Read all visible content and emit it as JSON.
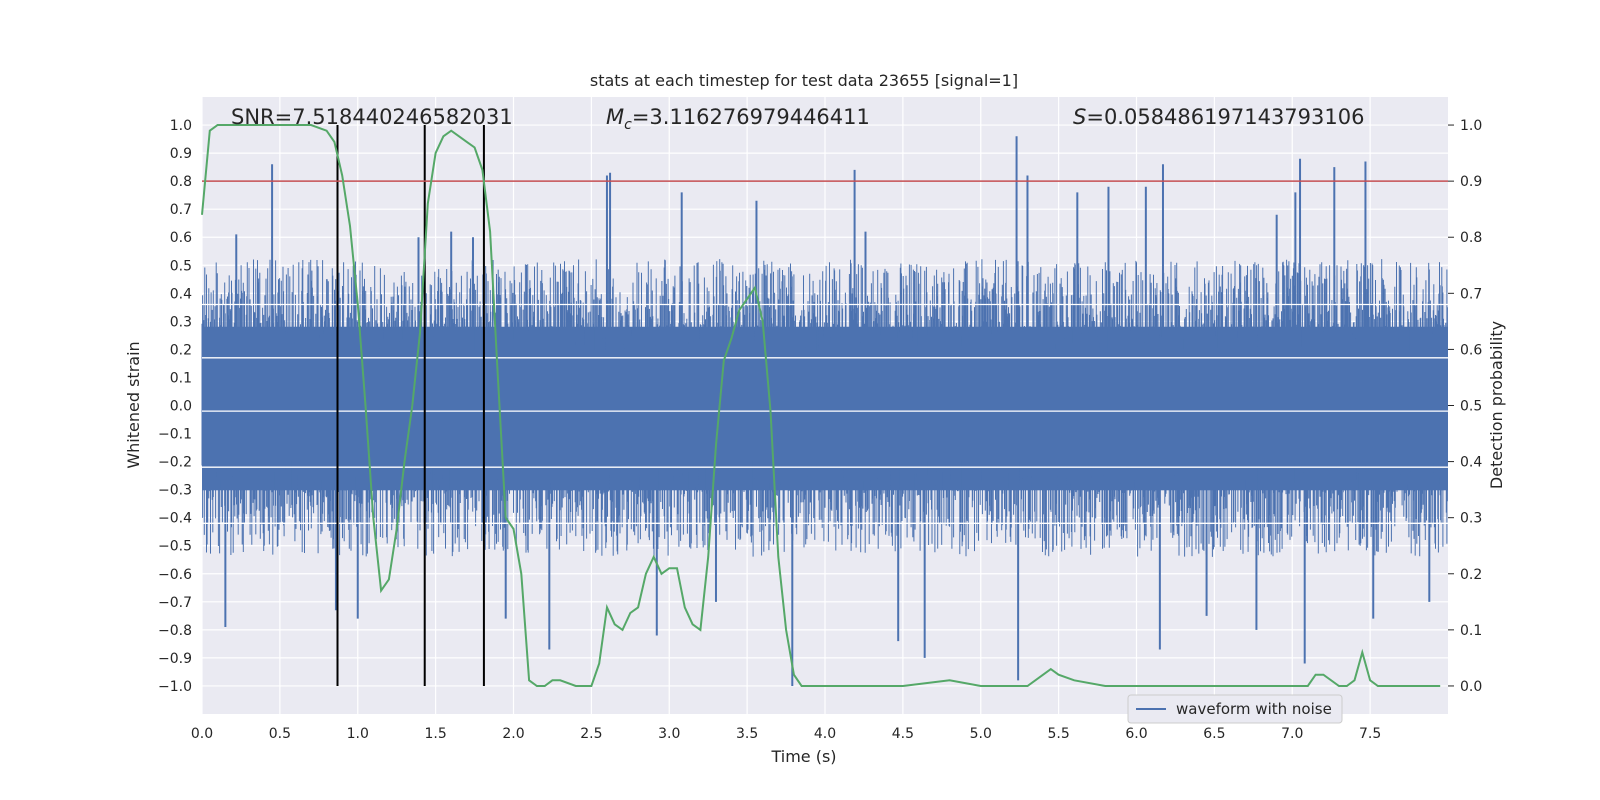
{
  "chart_data": {
    "type": "line",
    "title": "stats at each timestep for test data 23655 [signal=1]",
    "xlabel": "Time (s)",
    "ylabel": "Whitened strain",
    "y2label": "Detection probability",
    "xlim": [
      0.0,
      8.0
    ],
    "ylim": [
      -1.1,
      1.1
    ],
    "y2lim": [
      -0.05,
      1.05
    ],
    "xticks": [
      "0.0",
      "0.5",
      "1.0",
      "1.5",
      "2.0",
      "2.5",
      "3.0",
      "3.5",
      "4.0",
      "4.5",
      "5.0",
      "5.5",
      "6.0",
      "6.5",
      "7.0",
      "7.5"
    ],
    "yticks": [
      "1.0",
      "0.9",
      "0.8",
      "0.7",
      "0.6",
      "0.5",
      "0.4",
      "0.3",
      "0.2",
      "0.1",
      "0.0",
      "−0.1",
      "−0.2",
      "−0.3",
      "−0.4",
      "−0.5",
      "−0.6",
      "−0.7",
      "−0.8",
      "−0.9",
      "−1.0"
    ],
    "y2ticks": [
      "1.0",
      "0.9",
      "0.8",
      "0.7",
      "0.6",
      "0.5",
      "0.4",
      "0.3",
      "0.2",
      "0.1",
      "0.0"
    ],
    "annotations": {
      "snr": "SNR=7.518440246582031",
      "mc_symbol": "M",
      "mc_sub": "c",
      "mc_value": "=3.116276979446411",
      "s_symbol": "S",
      "s_value": "=0.058486197143793106"
    },
    "threshold": {
      "value": 0.9,
      "color": "#c44e52"
    },
    "vertical_lines": [
      0.87,
      1.43,
      1.81
    ],
    "series": [
      {
        "name": "waveform with noise",
        "color": "#4c72b0",
        "core_amplitude": 0.36,
        "spikes": [
          {
            "x": 0.45,
            "y": 0.86
          },
          {
            "x": 0.15,
            "y": -0.79
          },
          {
            "x": 0.22,
            "y": 0.61
          },
          {
            "x": 0.86,
            "y": -0.73
          },
          {
            "x": 1.0,
            "y": -0.76
          },
          {
            "x": 1.39,
            "y": 0.6
          },
          {
            "x": 1.6,
            "y": 0.62
          },
          {
            "x": 1.74,
            "y": 0.6
          },
          {
            "x": 1.95,
            "y": -0.76
          },
          {
            "x": 2.23,
            "y": -0.87
          },
          {
            "x": 2.62,
            "y": 0.83
          },
          {
            "x": 2.6,
            "y": 0.82
          },
          {
            "x": 2.92,
            "y": -0.82
          },
          {
            "x": 3.08,
            "y": 0.76
          },
          {
            "x": 3.56,
            "y": 0.73
          },
          {
            "x": 3.79,
            "y": -1.0
          },
          {
            "x": 4.19,
            "y": 0.84
          },
          {
            "x": 4.47,
            "y": -0.84
          },
          {
            "x": 4.64,
            "y": -0.9
          },
          {
            "x": 5.23,
            "y": 0.96
          },
          {
            "x": 5.24,
            "y": -0.98
          },
          {
            "x": 5.3,
            "y": 0.82
          },
          {
            "x": 5.62,
            "y": 0.76
          },
          {
            "x": 5.82,
            "y": 0.78
          },
          {
            "x": 6.06,
            "y": 0.78
          },
          {
            "x": 6.15,
            "y": -0.87
          },
          {
            "x": 6.17,
            "y": 0.86
          },
          {
            "x": 6.45,
            "y": -0.75
          },
          {
            "x": 6.77,
            "y": -0.8
          },
          {
            "x": 7.02,
            "y": 0.76
          },
          {
            "x": 7.05,
            "y": 0.88
          },
          {
            "x": 7.08,
            "y": -0.92
          },
          {
            "x": 7.27,
            "y": 0.85
          },
          {
            "x": 7.47,
            "y": 0.87
          },
          {
            "x": 7.52,
            "y": -0.76
          },
          {
            "x": 7.88,
            "y": -0.7
          },
          {
            "x": 4.26,
            "y": 0.62
          },
          {
            "x": 3.3,
            "y": -0.7
          },
          {
            "x": 6.9,
            "y": 0.68
          }
        ]
      },
      {
        "name": "detection probability",
        "axis": "right",
        "color": "#55a868",
        "x": [
          0.0,
          0.05,
          0.1,
          0.2,
          0.3,
          0.4,
          0.5,
          0.6,
          0.7,
          0.8,
          0.85,
          0.9,
          0.95,
          1.0,
          1.05,
          1.1,
          1.15,
          1.2,
          1.25,
          1.3,
          1.35,
          1.4,
          1.45,
          1.5,
          1.55,
          1.6,
          1.65,
          1.7,
          1.75,
          1.8,
          1.85,
          1.9,
          1.95,
          2.0,
          2.05,
          2.1,
          2.15,
          2.2,
          2.25,
          2.3,
          2.4,
          2.5,
          2.55,
          2.6,
          2.65,
          2.7,
          2.75,
          2.8,
          2.85,
          2.9,
          2.95,
          3.0,
          3.05,
          3.1,
          3.15,
          3.2,
          3.25,
          3.3,
          3.35,
          3.4,
          3.45,
          3.5,
          3.55,
          3.6,
          3.65,
          3.7,
          3.75,
          3.8,
          3.85,
          3.9,
          4.0,
          4.2,
          4.5,
          4.8,
          5.0,
          5.2,
          5.3,
          5.4,
          5.45,
          5.5,
          5.6,
          5.8,
          6.0,
          6.2,
          6.5,
          6.8,
          7.0,
          7.1,
          7.15,
          7.2,
          7.3,
          7.35,
          7.4,
          7.45,
          7.5,
          7.55,
          7.6,
          7.8,
          7.95
        ],
        "y": [
          0.84,
          0.99,
          1.0,
          1.0,
          1.0,
          1.0,
          1.0,
          1.0,
          1.0,
          0.99,
          0.97,
          0.91,
          0.82,
          0.68,
          0.5,
          0.3,
          0.17,
          0.19,
          0.28,
          0.4,
          0.5,
          0.63,
          0.86,
          0.95,
          0.98,
          0.99,
          0.98,
          0.97,
          0.96,
          0.92,
          0.81,
          0.55,
          0.3,
          0.28,
          0.2,
          0.01,
          0.0,
          0.0,
          0.01,
          0.01,
          0.0,
          0.0,
          0.04,
          0.14,
          0.11,
          0.1,
          0.13,
          0.14,
          0.2,
          0.23,
          0.2,
          0.21,
          0.21,
          0.14,
          0.11,
          0.1,
          0.23,
          0.43,
          0.58,
          0.62,
          0.67,
          0.69,
          0.71,
          0.65,
          0.49,
          0.23,
          0.1,
          0.02,
          0.0,
          0.0,
          0.0,
          0.0,
          0.0,
          0.01,
          0.0,
          0.0,
          0.0,
          0.02,
          0.03,
          0.02,
          0.01,
          0.0,
          0.0,
          0.0,
          0.0,
          0.0,
          0.0,
          0.0,
          0.02,
          0.02,
          0.0,
          0.0,
          0.01,
          0.06,
          0.01,
          0.0,
          0.0,
          0.0,
          0.0
        ]
      }
    ],
    "legend": {
      "label": "waveform with noise",
      "placement": "lower-right"
    }
  }
}
